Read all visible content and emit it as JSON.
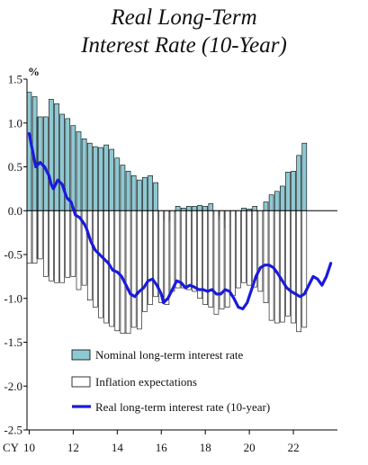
{
  "title_lines": [
    "Real Long-Term",
    "Interest Rate (10-Year)"
  ],
  "chart_data": {
    "type": "bar",
    "title": "Real Long-Term Interest Rate (10-Year)",
    "ylabel": "%",
    "x_axis_prefix": "CY",
    "ylim": [
      -2.5,
      1.5
    ],
    "yticks": [
      "1.5",
      "1.0",
      "0.5",
      "0.0",
      "-0.5",
      "-1.0",
      "-1.5",
      "-2.0",
      "-2.5"
    ],
    "ytick_values": [
      1.5,
      1.0,
      0.5,
      0.0,
      -0.5,
      -1.0,
      -1.5,
      -2.0,
      -2.5
    ],
    "xticks": [
      "10",
      "12",
      "14",
      "16",
      "18",
      "20",
      "22"
    ],
    "xtick_values": [
      10,
      12,
      14,
      16,
      18,
      20,
      22
    ],
    "x_start": 2010.0,
    "bar_step": 0.25,
    "series": [
      {
        "name": "Nominal long-term interest rate",
        "kind": "bar",
        "color": "#8ec9d3",
        "values": [
          1.35,
          1.3,
          1.07,
          1.07,
          1.27,
          1.22,
          1.1,
          1.05,
          0.97,
          0.9,
          0.82,
          0.77,
          0.73,
          0.72,
          0.75,
          0.7,
          0.6,
          0.52,
          0.45,
          0.4,
          0.35,
          0.38,
          0.4,
          0.32,
          -0.1,
          -0.12,
          -0.02,
          0.05,
          0.03,
          0.05,
          0.05,
          0.06,
          0.05,
          0.08,
          -0.05,
          -0.1,
          -0.2,
          -0.05,
          0.0,
          0.03,
          0.02,
          0.05,
          0.0,
          0.1,
          0.18,
          0.22,
          0.28,
          0.44,
          0.45,
          0.63,
          0.77
        ]
      },
      {
        "name": "Inflation expectations",
        "kind": "bar",
        "color": "#ffffff",
        "values": [
          -0.6,
          -0.6,
          -0.55,
          -0.75,
          -0.8,
          -0.82,
          -0.82,
          -0.76,
          -0.75,
          -0.9,
          -0.85,
          -1.02,
          -1.1,
          -1.22,
          -1.28,
          -1.32,
          -1.37,
          -1.4,
          -1.4,
          -1.33,
          -1.35,
          -1.15,
          -1.07,
          -0.98,
          -1.05,
          -1.07,
          -0.92,
          -0.88,
          -0.88,
          -0.9,
          -0.92,
          -1.0,
          -1.07,
          -1.1,
          -1.18,
          -1.12,
          -1.1,
          -0.97,
          -0.88,
          -0.82,
          -0.85,
          -0.87,
          -0.92,
          -1.05,
          -1.25,
          -1.28,
          -1.27,
          -1.2,
          -1.28,
          -1.38,
          -1.33
        ]
      },
      {
        "name": "Real long-term interest rate (10-year)",
        "kind": "line",
        "color": "#1a1adc",
        "x": [
          2010.0,
          2010.1,
          2010.3,
          2010.5,
          2010.7,
          2010.9,
          2011.0,
          2011.1,
          2011.3,
          2011.5,
          2011.7,
          2011.9,
          2012.1,
          2012.3,
          2012.5,
          2012.6,
          2012.8,
          2013.0,
          2013.2,
          2013.4,
          2013.6,
          2013.8,
          2014.0,
          2014.2,
          2014.4,
          2014.6,
          2014.8,
          2015.0,
          2015.2,
          2015.4,
          2015.6,
          2015.8,
          2016.0,
          2016.1,
          2016.3,
          2016.5,
          2016.7,
          2016.9,
          2017.1,
          2017.3,
          2017.5,
          2017.7,
          2017.9,
          2018.1,
          2018.3,
          2018.5,
          2018.7,
          2018.9,
          2019.1,
          2019.3,
          2019.5,
          2019.7,
          2019.9,
          2020.1,
          2020.3,
          2020.5,
          2020.7,
          2020.9,
          2021.1,
          2021.3,
          2021.5,
          2021.7,
          2021.9,
          2022.1,
          2022.3,
          2022.5,
          2022.7,
          2022.9,
          2023.1,
          2023.3,
          2023.5,
          2023.7
        ],
        "y": [
          0.88,
          0.75,
          0.5,
          0.55,
          0.5,
          0.4,
          0.3,
          0.25,
          0.35,
          0.3,
          0.15,
          0.1,
          -0.05,
          -0.08,
          -0.15,
          -0.2,
          -0.35,
          -0.45,
          -0.5,
          -0.55,
          -0.6,
          -0.68,
          -0.7,
          -0.75,
          -0.85,
          -0.95,
          -0.98,
          -0.92,
          -0.88,
          -0.8,
          -0.78,
          -0.85,
          -0.95,
          -1.05,
          -1.0,
          -0.9,
          -0.8,
          -0.82,
          -0.88,
          -0.85,
          -0.87,
          -0.9,
          -0.9,
          -0.92,
          -0.9,
          -0.95,
          -0.95,
          -0.9,
          -0.92,
          -1.0,
          -1.1,
          -1.12,
          -1.05,
          -0.9,
          -0.75,
          -0.65,
          -0.62,
          -0.62,
          -0.65,
          -0.72,
          -0.8,
          -0.88,
          -0.92,
          -0.95,
          -0.98,
          -0.95,
          -0.85,
          -0.75,
          -0.78,
          -0.85,
          -0.75,
          -0.6
        ]
      }
    ],
    "legend_position": "bottom-center"
  }
}
